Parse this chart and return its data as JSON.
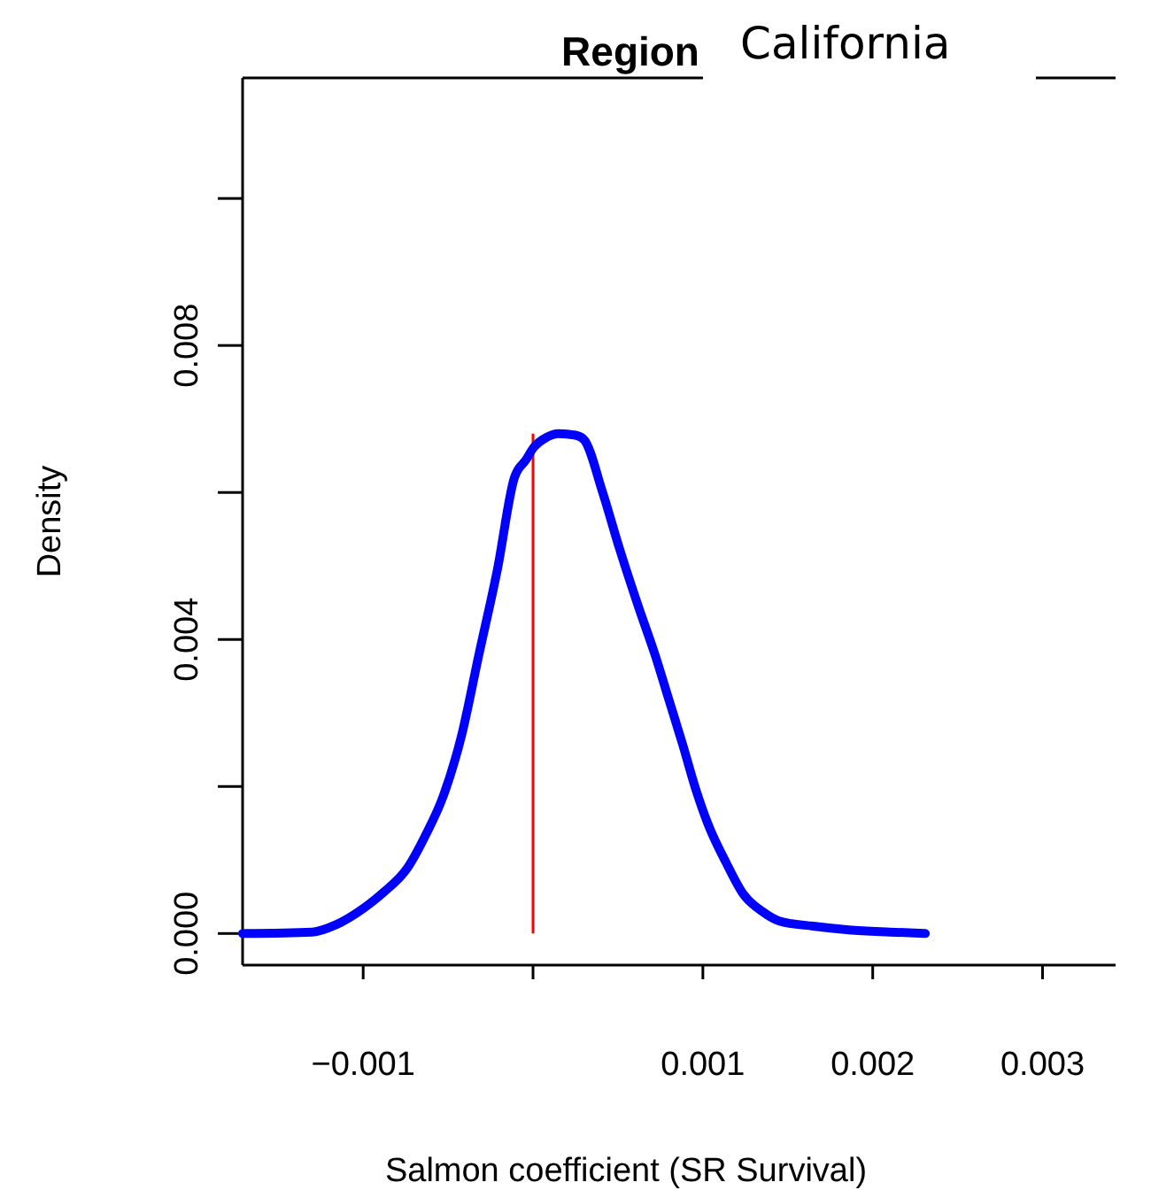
{
  "chart_data": {
    "type": "line",
    "title": "Region",
    "subtitle": "California",
    "xlabel": "Salmon coefficient (SR Survival)",
    "ylabel": "Density",
    "xlim": [
      -0.00171,
      0.00343
    ],
    "ylim": [
      -0.00043,
      0.01164
    ],
    "xticks": [
      {
        "value": -0.001,
        "label": "−0.001"
      },
      {
        "value": 0,
        "label": null
      },
      0.001,
      0.002,
      0.003
    ],
    "yticks": [
      {
        "value": 0,
        "label": "0.000"
      },
      {
        "value": 0.002,
        "label": null
      },
      0.004,
      {
        "value": 0.006,
        "label": null
      },
      0.008,
      {
        "value": 0.01,
        "label": null
      }
    ],
    "ref_lines": [
      {
        "axis": "x",
        "value": 0,
        "color": "#ff0000"
      }
    ],
    "series": [
      {
        "color": "#0000ff",
        "x": [
          -0.00171,
          -0.0013,
          -0.00116,
          -0.001,
          -0.00088,
          -0.00074,
          -0.00063,
          -0.00053,
          -0.00042,
          -0.00032,
          -0.00021,
          -0.00011,
          -4e-05,
          0,
          8e-05,
          0.00015,
          0.00025,
          0.0003,
          0.00041,
          0.00051,
          0.00062,
          0.00072,
          0.0008,
          0.00088,
          0.00096,
          0.00103,
          0.00114,
          0.00124,
          0.00135,
          0.00145,
          0.00165,
          0.00186,
          0.0021,
          0.00231
        ],
        "values": [
          0,
          2e-05,
          0.00012,
          0.00034,
          0.00056,
          0.00089,
          0.00135,
          0.00186,
          0.0027,
          0.00378,
          0.00495,
          0.0062,
          0.00645,
          0.0066,
          0.00675,
          0.0068,
          0.00678,
          0.00672,
          0.006,
          0.00523,
          0.00445,
          0.00378,
          0.00318,
          0.00258,
          0.00195,
          0.00149,
          0.00095,
          0.00053,
          0.0003,
          0.00017,
          0.0001,
          5e-05,
          2e-05,
          0
        ]
      }
    ]
  }
}
